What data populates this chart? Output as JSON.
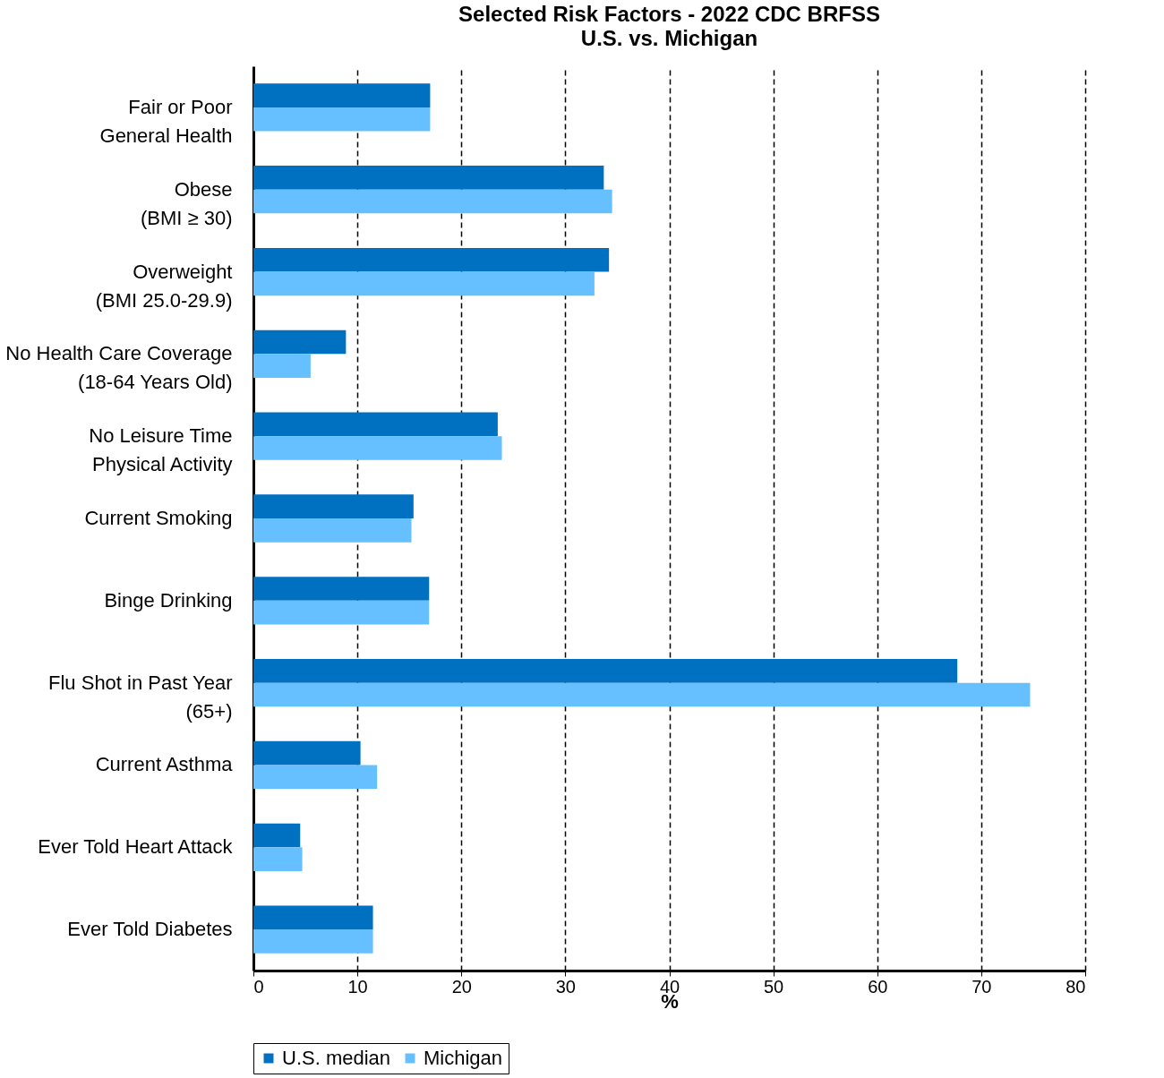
{
  "chart_data": {
    "type": "bar",
    "orientation": "horizontal",
    "title": "Selected Risk Factors - 2022 CDC BRFSS",
    "subtitle": "U.S. vs. Michigan",
    "xlabel": "%",
    "categories": [
      "Fair or Poor\nGeneral Health",
      "Obese\n(BMI ≥ 30)",
      "Overweight\n(BMI 25.0-29.9)",
      "No Health Care Coverage\n(18-64 Years Old)",
      "No Leisure Time\nPhysical Activity",
      "Current Smoking",
      "Binge Drinking",
      "Flu Shot in Past Year\n(65+)",
      "Current Asthma",
      "Ever Told Heart Attack",
      "Ever Told Diabetes"
    ],
    "series": [
      {
        "name": "U.S. median",
        "color": "#0070c0",
        "values": [
          17.0,
          33.7,
          34.2,
          8.9,
          23.5,
          15.4,
          16.9,
          67.7,
          10.3,
          4.5,
          11.5
        ]
      },
      {
        "name": "Michigan",
        "color": "#66bfff",
        "values": [
          17.0,
          34.5,
          32.8,
          5.5,
          23.9,
          15.2,
          16.9,
          74.7,
          11.9,
          4.7,
          11.5
        ]
      }
    ],
    "xlim": [
      0,
      80
    ],
    "xticks": [
      0,
      10,
      20,
      30,
      40,
      50,
      60,
      70,
      80
    ],
    "grid": "x",
    "legend": "bottom"
  }
}
